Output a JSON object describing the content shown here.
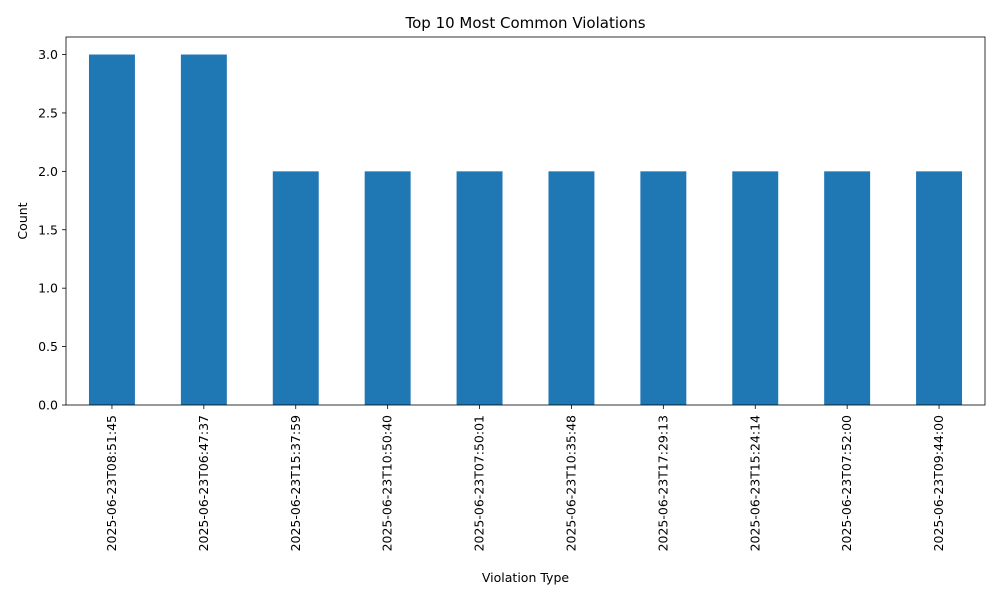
{
  "chart_data": {
    "type": "bar",
    "title": "Top 10 Most Common Violations",
    "xlabel": "Violation Type",
    "ylabel": "Count",
    "categories": [
      "2025-06-23T08:51:45",
      "2025-06-23T06:47:37",
      "2025-06-23T15:37:59",
      "2025-06-23T10:50:40",
      "2025-06-23T07:50:01",
      "2025-06-23T10:35:48",
      "2025-06-23T17:29:13",
      "2025-06-23T15:24:14",
      "2025-06-23T07:52:00",
      "2025-06-23T09:44:00"
    ],
    "values": [
      3,
      3,
      2,
      2,
      2,
      2,
      2,
      2,
      2,
      2
    ],
    "ylim": [
      0,
      3.15
    ],
    "yticks": [
      "0.0",
      "0.5",
      "1.0",
      "1.5",
      "2.0",
      "2.5",
      "3.0"
    ],
    "bar_color": "#1f77b4",
    "grid": false,
    "legend": "none"
  }
}
